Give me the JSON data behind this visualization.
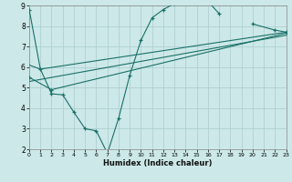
{
  "xlabel": "Humidex (Indice chaleur)",
  "bg_color": "#cce8e8",
  "grid_color": "#aacccc",
  "line_color": "#1a7068",
  "xlim": [
    0,
    23
  ],
  "ylim": [
    2,
    9
  ],
  "yticks": [
    2,
    3,
    4,
    5,
    6,
    7,
    8,
    9
  ],
  "xticks": [
    0,
    1,
    2,
    3,
    4,
    5,
    6,
    7,
    8,
    9,
    10,
    11,
    12,
    13,
    14,
    15,
    16,
    17,
    18,
    19,
    20,
    21,
    22,
    23
  ],
  "main_x": [
    0,
    1,
    2,
    3,
    4,
    5,
    6,
    7,
    8,
    9,
    10,
    11,
    12,
    13,
    14,
    15,
    16,
    17,
    20,
    22,
    23
  ],
  "main_y": [
    8.8,
    5.9,
    4.7,
    4.65,
    3.8,
    3.0,
    2.9,
    1.8,
    3.5,
    5.6,
    7.3,
    8.4,
    8.8,
    9.1,
    9.3,
    9.3,
    9.2,
    8.6,
    8.1,
    7.8,
    7.7
  ],
  "main_connected": [
    1,
    1,
    1,
    1,
    1,
    1,
    1,
    1,
    1,
    1,
    1,
    1,
    1,
    1,
    1,
    1,
    1,
    1,
    0,
    1,
    1
  ],
  "line1_x": [
    0,
    1,
    23
  ],
  "line1_y": [
    6.1,
    5.9,
    7.7
  ],
  "line2_x": [
    0,
    2,
    23
  ],
  "line2_y": [
    5.5,
    4.9,
    7.65
  ],
  "line3_x": [
    0,
    23
  ],
  "line3_y": [
    5.3,
    7.55
  ]
}
